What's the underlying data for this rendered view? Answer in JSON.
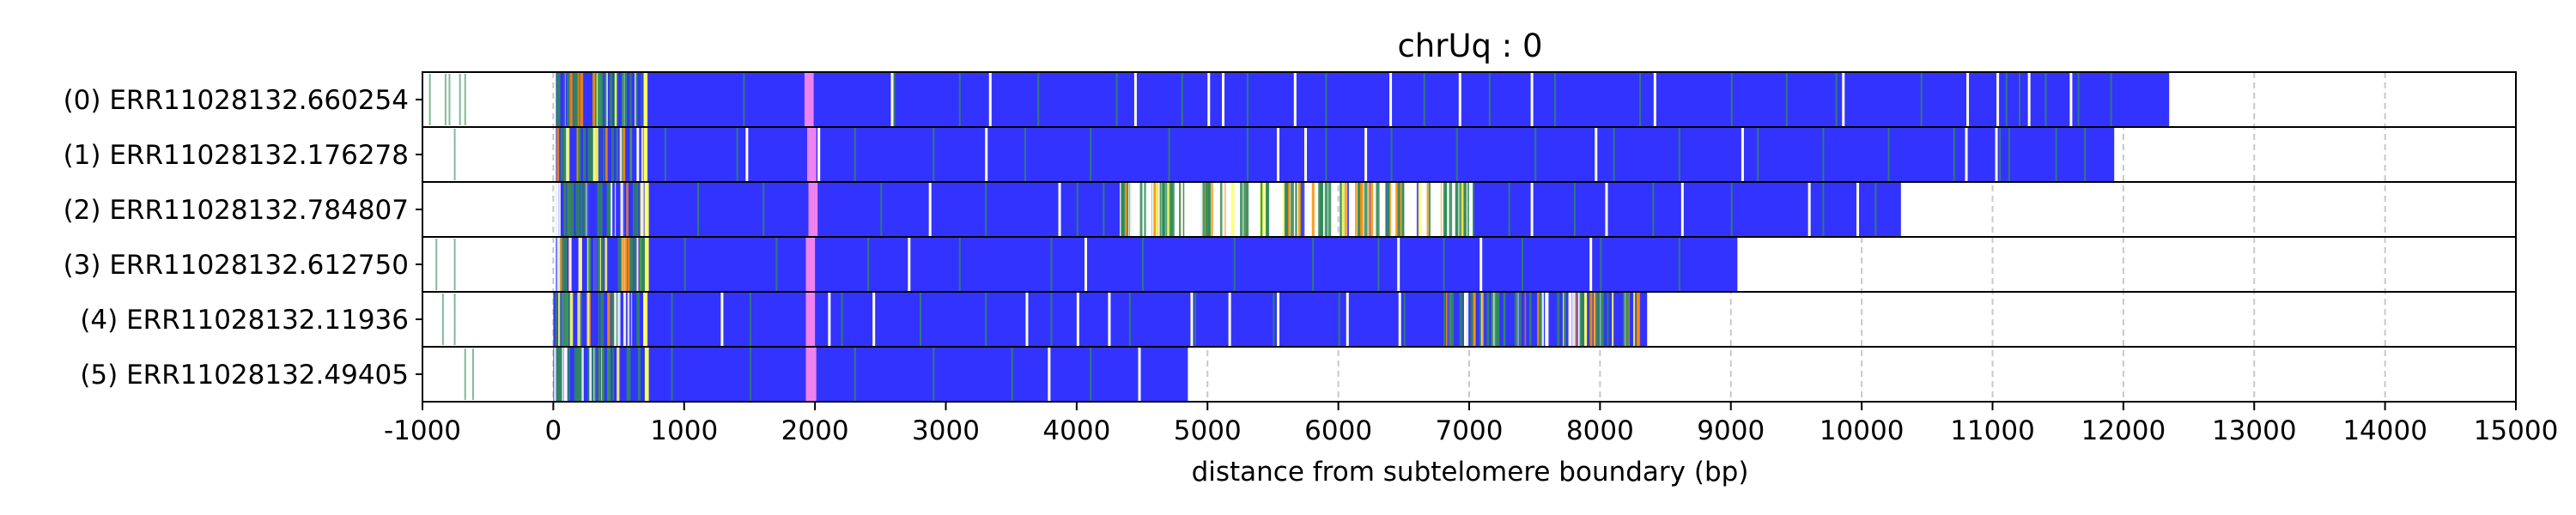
{
  "chart_data": {
    "type": "bar",
    "orientation": "horizontal",
    "title": "chrUq : 0",
    "xlabel": "distance from subtelomere boundary (bp)",
    "ylabel": "",
    "xlim": [
      -1000,
      15000
    ],
    "xticks": [
      -1000,
      0,
      1000,
      2000,
      3000,
      4000,
      5000,
      6000,
      7000,
      8000,
      9000,
      10000,
      11000,
      12000,
      13000,
      14000,
      15000
    ],
    "xtick_labels": [
      "-1000",
      "0",
      "1000",
      "2000",
      "3000",
      "4000",
      "5000",
      "6000",
      "7000",
      "8000",
      "9000",
      "10000",
      "11000",
      "12000",
      "13000",
      "14000",
      "15000"
    ],
    "grid": "vertical dashed",
    "colors": {
      "main": "#3333ff",
      "pink": "#ee82ee",
      "yellow": "#ffff66",
      "green": "#2e8b57",
      "orange": "#ff8c00",
      "white": "#ffffff",
      "grid": "#c8c8c8"
    },
    "reads": [
      {
        "label": "(0) ERR11028132.660254",
        "start": 20,
        "end": 12350,
        "outer_ticks": [
          -950,
          -830,
          -800,
          -720,
          -680
        ],
        "gaps": [],
        "dense_regions": [
          [
            20,
            700
          ]
        ],
        "pink": [
          [
            1920,
            1990
          ]
        ],
        "yellow": [
          [
            690,
            720
          ]
        ],
        "white_lines": [
          2580,
          3330,
          4440,
          5000,
          5110,
          5660,
          6390,
          6920,
          7470,
          8410,
          9850,
          10800,
          11030,
          11270,
          11590
        ],
        "green_lines": [
          1450,
          2600,
          3100,
          3700,
          4300,
          4800,
          5300,
          5900,
          6650,
          7150,
          7650,
          8300,
          9000,
          9420,
          9800,
          10450,
          11100,
          11200,
          11400,
          11650,
          11900
        ]
      },
      {
        "label": "(1) ERR11028132.176278",
        "start": 20,
        "end": 11930,
        "outer_ticks": [
          -760
        ],
        "gaps": [],
        "dense_regions": [
          [
            20,
            700
          ]
        ],
        "pink": [
          [
            1940,
            2010
          ]
        ],
        "yellow": [
          [
            690,
            720
          ]
        ],
        "white_lines": [
          1470,
          2020,
          3300,
          5530,
          5740,
          6200,
          7960,
          9080,
          10790,
          11020
        ],
        "green_lines": [
          850,
          1400,
          2300,
          2900,
          3600,
          4100,
          4700,
          5300,
          5900,
          6400,
          6900,
          7500,
          8100,
          8600,
          9200,
          9700,
          10200,
          10700,
          11050,
          11120,
          11480,
          11700
        ]
      },
      {
        "label": "(2) ERR11028132.784807",
        "start": 20,
        "end": 10300,
        "outer_ticks": [],
        "gaps": [
          [
            4330,
            7030
          ]
        ],
        "dense_regions": [
          [
            20,
            700
          ],
          [
            4330,
            7030
          ]
        ],
        "pink": [
          [
            1950,
            2020
          ]
        ],
        "yellow": [
          [
            700,
            730
          ]
        ],
        "white_lines": [
          2870,
          3860,
          7470,
          8040,
          8620,
          9590,
          9960
        ],
        "green_lines": [
          1100,
          1600,
          2500,
          3300,
          4000,
          4200,
          7300,
          7800,
          8400,
          9000,
          9700,
          10100
        ]
      },
      {
        "label": "(3) ERR11028132.612750",
        "start": 20,
        "end": 9050,
        "outer_ticks": [
          -900,
          -760
        ],
        "gaps": [],
        "dense_regions": [
          [
            20,
            700
          ]
        ],
        "pink": [
          [
            1930,
            2000
          ]
        ],
        "yellow": [
          [
            700,
            730
          ]
        ],
        "white_lines": [
          2710,
          4060,
          6450,
          7080,
          7920
        ],
        "green_lines": [
          1000,
          1700,
          2400,
          3100,
          3800,
          4500,
          5200,
          5800,
          6300,
          6800,
          7400,
          8000,
          8600
        ]
      },
      {
        "label": "(4) ERR11028132.11936",
        "start": 0,
        "end": 8360,
        "outer_ticks": [
          -850,
          -760
        ],
        "gaps": [],
        "dense_regions": [
          [
            0,
            700
          ],
          [
            6800,
            8300
          ]
        ],
        "pink": [
          [
            1930,
            2000
          ]
        ],
        "yellow": [
          [
            690,
            720
          ],
          [
            7880,
            7900
          ]
        ],
        "white_lines": [
          1280,
          2100,
          2440,
          3610,
          4000,
          4240,
          4870,
          5160,
          5530,
          6060,
          6460,
          6960,
          7580
        ],
        "green_lines": [
          900,
          1500,
          2200,
          2800,
          3300,
          3800,
          4400,
          4900,
          5500,
          6000,
          6500
        ]
      },
      {
        "label": "(5) ERR11028132.49405",
        "start": 0,
        "end": 4850,
        "outer_ticks": [
          -680,
          -620
        ],
        "gaps": [],
        "dense_regions": [
          [
            0,
            700
          ]
        ],
        "pink": [
          [
            1930,
            2010
          ]
        ],
        "yellow": [
          [
            700,
            730
          ]
        ],
        "white_lines": [
          3780,
          4470
        ],
        "green_lines": [
          900,
          1500,
          2300,
          2900,
          3500,
          4100
        ]
      }
    ]
  }
}
